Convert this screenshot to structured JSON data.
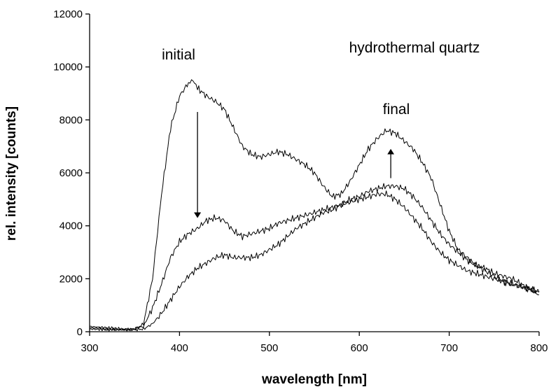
{
  "chart_data": {
    "type": "line",
    "title": "",
    "xlabel": "wavelength [nm]",
    "ylabel": "rel. intensity [counts]",
    "xlim": [
      300,
      800
    ],
    "ylim": [
      0,
      12000
    ],
    "xticks": [
      300,
      400,
      500,
      600,
      700,
      800
    ],
    "yticks": [
      0,
      2000,
      4000,
      6000,
      8000,
      10000,
      12000
    ],
    "grid": false,
    "legend": "none",
    "annotations": [
      {
        "text": "initial"
      },
      {
        "text": "final"
      },
      {
        "text": "hydrothermal quartz"
      }
    ],
    "arrows": [
      {
        "from": [
          420,
          8300
        ],
        "to": [
          420,
          4400
        ],
        "direction": "down"
      },
      {
        "from": [
          635,
          5800
        ],
        "to": [
          635,
          6800
        ],
        "direction": "up"
      }
    ],
    "series": [
      {
        "x": [
          300,
          320,
          340,
          350,
          360,
          370,
          380,
          390,
          400,
          410,
          415,
          420,
          430,
          440,
          450,
          460,
          470,
          480,
          490,
          500,
          510,
          520,
          530,
          540,
          550,
          560,
          570,
          580,
          590,
          600,
          610,
          620,
          630,
          640,
          650,
          660,
          670,
          680,
          690,
          700,
          710,
          720,
          730,
          740,
          750,
          760,
          770,
          780,
          790,
          800
        ],
        "values": [
          100,
          80,
          60,
          80,
          300,
          2000,
          5200,
          7700,
          8900,
          9400,
          9500,
          9200,
          8900,
          8700,
          8400,
          7700,
          7000,
          6700,
          6600,
          6700,
          6800,
          6700,
          6500,
          6300,
          6000,
          5500,
          5100,
          5200,
          5700,
          6300,
          6900,
          7300,
          7600,
          7500,
          7200,
          6900,
          6400,
          5800,
          4800,
          3800,
          3100,
          2800,
          2500,
          2300,
          2100,
          1900,
          1800,
          1700,
          1600,
          1500
        ]
      },
      {
        "x": [
          300,
          320,
          340,
          350,
          360,
          370,
          380,
          390,
          400,
          410,
          420,
          430,
          440,
          450,
          460,
          470,
          480,
          490,
          500,
          510,
          520,
          530,
          540,
          550,
          560,
          570,
          580,
          590,
          600,
          610,
          620,
          630,
          640,
          650,
          660,
          670,
          680,
          690,
          700,
          710,
          720,
          730,
          740,
          750,
          760,
          770,
          780,
          790,
          800
        ],
        "values": [
          150,
          100,
          80,
          120,
          200,
          900,
          1800,
          2800,
          3400,
          3700,
          3900,
          4200,
          4300,
          4200,
          3800,
          3600,
          3700,
          3800,
          3900,
          4100,
          4200,
          4300,
          4400,
          4500,
          4600,
          4700,
          4800,
          5000,
          5100,
          5300,
          5400,
          5500,
          5500,
          5400,
          5100,
          4700,
          4200,
          3700,
          3300,
          3000,
          2700,
          2500,
          2400,
          2200,
          2100,
          2000,
          1800,
          1600,
          1400
        ]
      },
      {
        "x": [
          300,
          320,
          340,
          350,
          360,
          370,
          380,
          390,
          400,
          410,
          420,
          430,
          440,
          450,
          460,
          470,
          480,
          490,
          500,
          510,
          520,
          530,
          540,
          550,
          560,
          570,
          580,
          590,
          600,
          610,
          620,
          630,
          640,
          650,
          660,
          670,
          680,
          690,
          700,
          710,
          720,
          730,
          740,
          750,
          760,
          770,
          780,
          790,
          800
        ],
        "values": [
          200,
          150,
          100,
          80,
          100,
          300,
          700,
          1200,
          1700,
          2100,
          2400,
          2600,
          2800,
          2900,
          2800,
          2800,
          2800,
          2900,
          3100,
          3300,
          3600,
          3900,
          4100,
          4300,
          4500,
          4600,
          4800,
          4900,
          5000,
          5100,
          5200,
          5200,
          5000,
          4700,
          4300,
          3900,
          3400,
          3000,
          2700,
          2500,
          2300,
          2200,
          2100,
          2000,
          1900,
          1800,
          1700,
          1600,
          1500
        ]
      }
    ]
  }
}
